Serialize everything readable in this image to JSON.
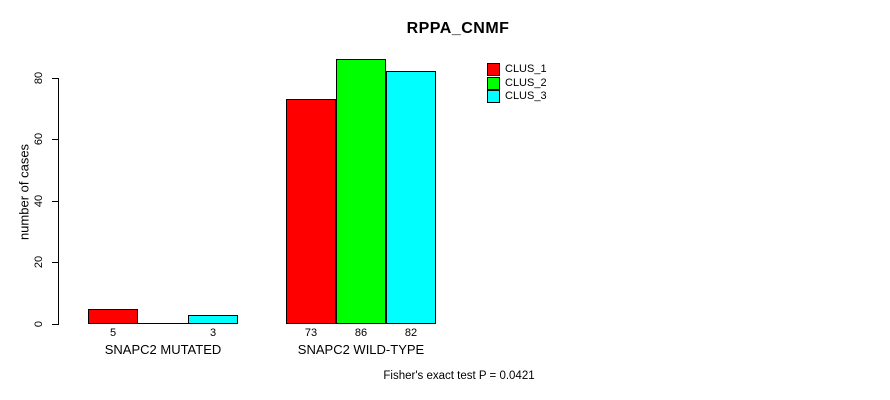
{
  "figure": {
    "title": "RPPA_CNMF",
    "y_axis_label": "number of cases",
    "annotation": "Fisher's exact test P = 0.0421"
  },
  "legend": {
    "items": [
      {
        "label": "CLUS_1",
        "color": "#FF0000"
      },
      {
        "label": "CLUS_2",
        "color": "#00FF00"
      },
      {
        "label": "CLUS_3",
        "color": "#00FFFF"
      }
    ]
  },
  "chart_data": {
    "type": "bar",
    "title": "RPPA_CNMF",
    "xlabel": "",
    "ylabel": "number of cases",
    "categories": [
      "SNAPC2 MUTATED",
      "SNAPC2 WILD-TYPE"
    ],
    "series": [
      {
        "name": "CLUS_1",
        "color": "#FF0000",
        "values": [
          5,
          73
        ]
      },
      {
        "name": "CLUS_2",
        "color": "#00FF00",
        "values": [
          0,
          86
        ]
      },
      {
        "name": "CLUS_3",
        "color": "#00FFFF",
        "values": [
          3,
          82
        ]
      }
    ],
    "yticks": [
      0,
      20,
      40,
      60,
      80
    ],
    "ylim": [
      0,
      88
    ],
    "bar_value_labels": {
      "show": true,
      "hidden_when_zero": true
    },
    "annotation": "Fisher's exact test P = 0.0421",
    "legend_position": "right-of-plot",
    "grid": false,
    "bar_border_color": "#000000",
    "background": "#FFFFFF"
  }
}
